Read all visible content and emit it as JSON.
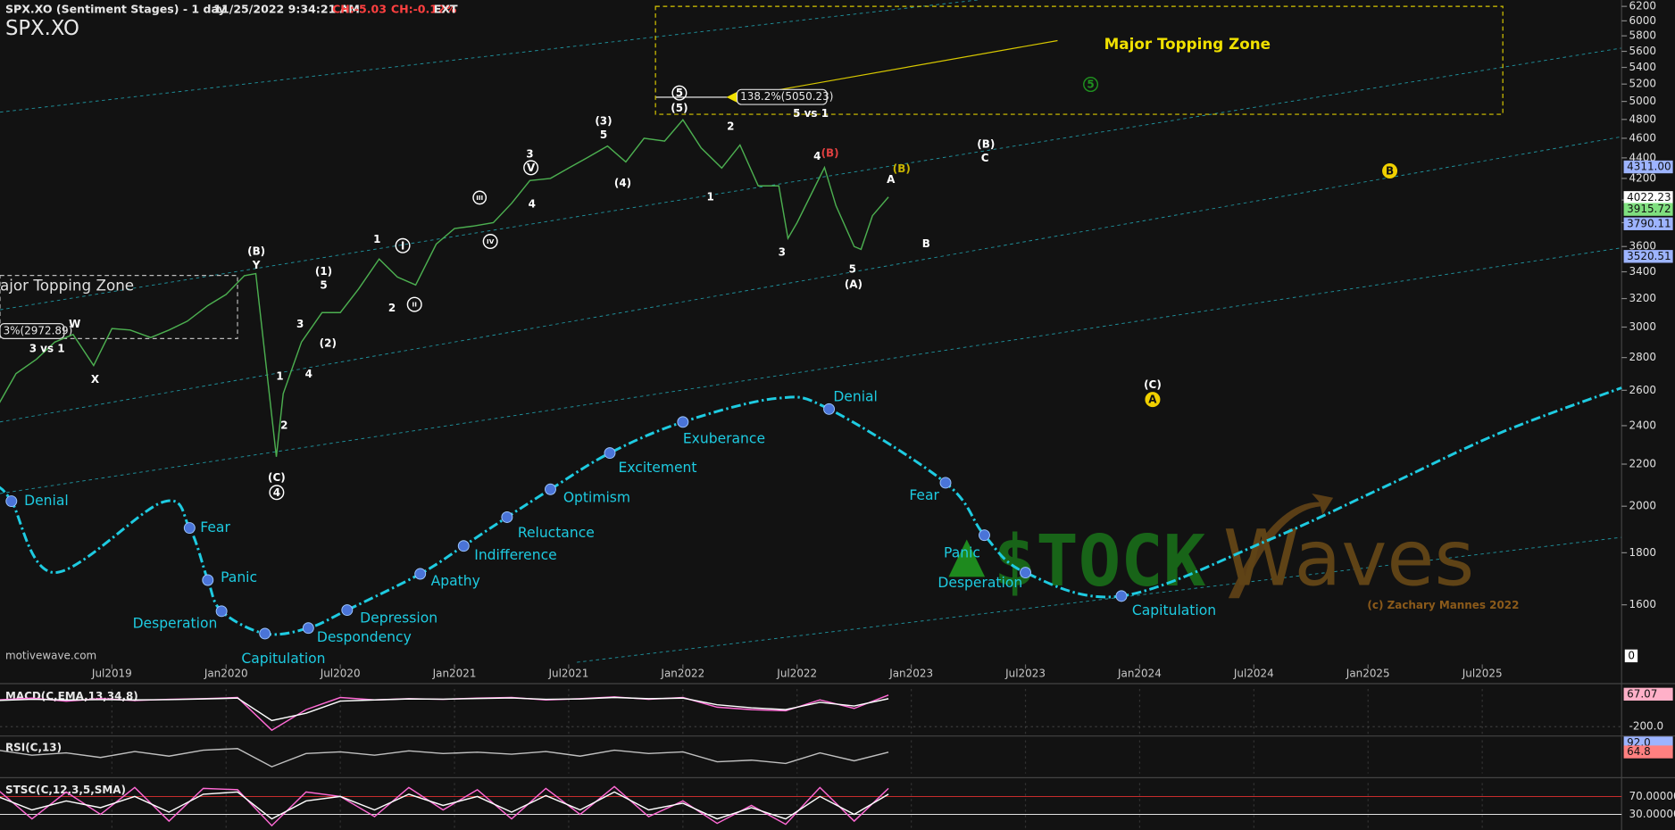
{
  "header": {
    "title": "SPX.XO (Sentiment Stages) - 1 day",
    "datetime": "11/25/2022 9:34:21 AM",
    "change": "CH:-5.03",
    "change_pct": "CH:-0.12%",
    "session": "EXT",
    "symbol": "SPX.XO",
    "source": "motivewave.com"
  },
  "watermark": {
    "brand_left": "$TOCK",
    "brand_right": "Waves",
    "copyright": "(c) Zachary Mannes 2022"
  },
  "chart_data": [
    {
      "type": "line",
      "log_scale": true,
      "xlim": [
        2019.01,
        2026.11
      ],
      "ylim": [
        1398,
        6290
      ],
      "xticks": [
        {
          "value": 2019.5,
          "label": "Jul2019"
        },
        {
          "value": 2020.0,
          "label": "Jan2020"
        },
        {
          "value": 2020.5,
          "label": "Jul2020"
        },
        {
          "value": 2021.0,
          "label": "Jan2021"
        },
        {
          "value": 2021.5,
          "label": "Jul2021"
        },
        {
          "value": 2022.0,
          "label": "Jan2022"
        },
        {
          "value": 2022.5,
          "label": "Jul2022"
        },
        {
          "value": 2023.0,
          "label": "Jan2023"
        },
        {
          "value": 2023.5,
          "label": "Jul2023"
        },
        {
          "value": 2024.0,
          "label": "Jan2024"
        },
        {
          "value": 2024.5,
          "label": "Jul2024"
        },
        {
          "value": 2025.0,
          "label": "Jan2025"
        },
        {
          "value": 2025.5,
          "label": "Jul2025"
        }
      ],
      "yticks": [
        1600,
        1800,
        2000,
        2200,
        2400,
        2600,
        2800,
        3000,
        3200,
        3400,
        3600,
        3800,
        4000,
        4200,
        4400,
        4600,
        4800,
        5000,
        5200,
        5400,
        5600,
        5800,
        6000,
        6200
      ],
      "axis_extra_label": "0",
      "series": [
        {
          "name": "SPX.XO",
          "color": "#4caf50",
          "x": [
            2019.0,
            2019.08,
            2019.17,
            2019.25,
            2019.33,
            2019.42,
            2019.5,
            2019.58,
            2019.67,
            2019.75,
            2019.83,
            2019.92,
            2020.0,
            2020.08,
            2020.13,
            2020.22,
            2020.25,
            2020.33,
            2020.42,
            2020.5,
            2020.58,
            2020.67,
            2020.75,
            2020.83,
            2020.92,
            2021.0,
            2021.08,
            2021.17,
            2021.25,
            2021.33,
            2021.42,
            2021.5,
            2021.58,
            2021.67,
            2021.75,
            2021.83,
            2021.92,
            2022.0,
            2022.08,
            2022.17,
            2022.25,
            2022.33,
            2022.42,
            2022.46,
            2022.5,
            2022.58,
            2022.62,
            2022.67,
            2022.75,
            2022.78,
            2022.83,
            2022.9
          ],
          "values": [
            2510,
            2700,
            2790,
            2900,
            2950,
            2750,
            2990,
            2980,
            2930,
            2980,
            3040,
            3150,
            3230,
            3370,
            3386,
            2237,
            2580,
            2900,
            3100,
            3100,
            3270,
            3500,
            3360,
            3300,
            3620,
            3750,
            3770,
            3800,
            3970,
            4180,
            4200,
            4300,
            4400,
            4520,
            4360,
            4600,
            4570,
            4796,
            4500,
            4300,
            4530,
            4130,
            4130,
            3667,
            3800,
            4130,
            4305,
            3950,
            3600,
            3577,
            3860,
            4027
          ]
        },
        {
          "color": "#1ecbe1",
          "smooth": true,
          "dashed": true,
          "x": [
            2019.0,
            2019.06,
            2019.25,
            2019.72,
            2019.84,
            2019.92,
            2019.98,
            2020.17,
            2020.36,
            2020.53,
            2020.85,
            2021.04,
            2021.23,
            2021.42,
            2021.68,
            2022.0,
            2022.41,
            2022.64,
            2023.15,
            2023.32,
            2023.5,
            2023.92,
            2024.57,
            2025.08,
            2025.58,
            2026.11
          ],
          "values": [
            2094,
            2023,
            1721,
            2018,
            1904,
            1692,
            1577,
            1499,
            1518,
            1581,
            1716,
            1828,
            1951,
            2078,
            2256,
            2420,
            2553,
            2492,
            2109,
            1873,
            1721,
            1632,
            1855,
            2094,
            2362,
            2615
          ],
          "labels": [
            null,
            "Denial",
            null,
            null,
            "Fear",
            "Panic",
            "Desperation",
            "Capitulation",
            "Despondency",
            "Depression",
            "Apathy",
            "Indifference",
            "Reluctance",
            "Optimism",
            "Excitement",
            "Exuberance",
            null,
            "Denial",
            "Fear",
            "Panic",
            "Desperation",
            "Capitulation",
            null,
            null,
            null,
            null
          ]
        }
      ],
      "zones": [
        {
          "label": "Major Topping Zone",
          "x": [
            2021.88,
            2025.59
          ],
          "y": [
            4856,
            6200
          ]
        },
        {
          "label": "ajor Topping Zone",
          "x": [
            2019.01,
            2020.05
          ],
          "y": [
            2923,
            3372
          ]
        }
      ],
      "fib_levels": [
        {
          "value": 5050.23,
          "label": "138.2%(5050.23)"
        },
        {
          "value": 2972.89,
          "label": "3%(2972.89)"
        }
      ],
      "price_labels": [
        {
          "value": 4311.0,
          "label": "4311.00",
          "color": "#9db4ff"
        },
        {
          "value": 4022.23,
          "label": "4022.23",
          "color": "#ffffff"
        },
        {
          "value": 3915.72,
          "label": "3915.72",
          "color": "#7fe07f"
        },
        {
          "value": 3790.11,
          "label": "3790.11",
          "color": "#9db4ff"
        },
        {
          "value": 3520.51,
          "label": "3520.51",
          "color": "#9db4ff"
        }
      ],
      "annotations": [
        {
          "text": "(B)"
        },
        {
          "text": "Y"
        },
        {
          "text": "W"
        },
        {
          "text": "X"
        },
        {
          "text": "3 vs 1"
        },
        {
          "text": "1"
        },
        {
          "text": "2"
        },
        {
          "text": "3"
        },
        {
          "text": "4"
        },
        {
          "text": "(1)"
        },
        {
          "text": "5"
        },
        {
          "text": "(2)"
        },
        {
          "text": "1"
        },
        {
          "text": "2"
        },
        {
          "text": "(C)"
        },
        {
          "text": "4",
          "circled": true
        },
        {
          "text": "I",
          "circled": true
        },
        {
          "text": "II",
          "circled": true
        },
        {
          "text": "III",
          "circled": true
        },
        {
          "text": "IV",
          "circled": true
        },
        {
          "text": "V",
          "circled": true
        },
        {
          "text": "3"
        },
        {
          "text": "4"
        },
        {
          "text": "(3)"
        },
        {
          "text": "5"
        },
        {
          "text": "(4)"
        },
        {
          "text": "5",
          "circled": true
        },
        {
          "text": "(5)"
        },
        {
          "text": "2"
        },
        {
          "text": "1"
        },
        {
          "text": "3"
        },
        {
          "text": "4"
        },
        {
          "text": "(B)",
          "color": "#e04040"
        },
        {
          "text": "(B)",
          "color": "#c8b400"
        },
        {
          "text": "A"
        },
        {
          "text": "5"
        },
        {
          "text": "(A)"
        },
        {
          "text": "B"
        },
        {
          "text": "(B)"
        },
        {
          "text": "C"
        },
        {
          "text": "5 vs 1"
        },
        {
          "text": "(C)"
        },
        {
          "text": "A",
          "circled": true,
          "filled": true,
          "color": "#f0d000"
        },
        {
          "text": "B",
          "circled": true,
          "filled": true,
          "color": "#f0d000"
        },
        {
          "text": "5",
          "circled": true,
          "color": "#1f8f1f"
        }
      ]
    },
    {
      "type": "line",
      "title": "MACD(C,EMA,13,34,8)",
      "xlim": [
        2019.01,
        2026.11
      ],
      "ylim": [
        -260,
        110
      ],
      "x": [
        2019.0,
        2019.15,
        2019.3,
        2019.45,
        2019.6,
        2019.75,
        2019.9,
        2020.05,
        2020.2,
        2020.35,
        2020.5,
        2020.65,
        2020.8,
        2020.95,
        2021.1,
        2021.25,
        2021.4,
        2021.55,
        2021.7,
        2021.85,
        2022.0,
        2022.15,
        2022.3,
        2022.45,
        2022.6,
        2022.75,
        2022.9
      ],
      "yticks": [
        {
          "value": -200,
          "label": "-200.0"
        }
      ],
      "last_values": [
        67.07
      ],
      "last_value_colors": [
        "#ffb0c8"
      ],
      "series": [
        {
          "color": "#ff6ad5",
          "values": [
            20,
            35,
            10,
            30,
            15,
            25,
            30,
            40,
            -230,
            -60,
            40,
            20,
            30,
            25,
            35,
            40,
            20,
            30,
            45,
            25,
            40,
            -40,
            -60,
            -70,
            20,
            -50,
            60
          ]
        },
        {
          "color": "#ffffff",
          "values": [
            15,
            25,
            20,
            22,
            20,
            22,
            28,
            35,
            -150,
            -90,
            10,
            20,
            28,
            26,
            32,
            36,
            25,
            28,
            40,
            30,
            35,
            -20,
            -45,
            -60,
            0,
            -30,
            30
          ]
        }
      ]
    },
    {
      "type": "line",
      "title": "RSI(C,13)",
      "xlim": [
        2019.01,
        2026.11
      ],
      "ylim": [
        0,
        100
      ],
      "x": [
        2019.0,
        2019.15,
        2019.3,
        2019.45,
        2019.6,
        2019.75,
        2019.9,
        2020.05,
        2020.2,
        2020.35,
        2020.5,
        2020.65,
        2020.8,
        2020.95,
        2021.1,
        2021.25,
        2021.4,
        2021.55,
        2021.7,
        2021.85,
        2022.0,
        2022.15,
        2022.3,
        2022.45,
        2022.6,
        2022.75,
        2022.9
      ],
      "last_values": [
        {
          "value": 92,
          "label": "92.0"
        },
        64.8
      ],
      "last_value_colors": [
        "#9db4ff",
        "#ff8080"
      ],
      "series": [
        {
          "color": "#c0c0c0",
          "values": [
            70,
            55,
            62,
            48,
            66,
            52,
            70,
            75,
            20,
            60,
            65,
            55,
            68,
            60,
            64,
            58,
            66,
            52,
            70,
            60,
            65,
            35,
            40,
            30,
            62,
            38,
            64
          ]
        }
      ]
    },
    {
      "type": "line",
      "title": "STSC(C,12,3,5,SMA)",
      "xlim": [
        2019.01,
        2026.11
      ],
      "ylim": [
        0,
        100
      ],
      "x": [
        2019.0,
        2019.15,
        2019.3,
        2019.45,
        2019.6,
        2019.75,
        2019.9,
        2020.05,
        2020.2,
        2020.35,
        2020.5,
        2020.65,
        2020.8,
        2020.95,
        2021.1,
        2021.25,
        2021.4,
        2021.55,
        2021.7,
        2021.85,
        2022.0,
        2022.15,
        2022.3,
        2022.45,
        2022.6,
        2022.75,
        2022.9
      ],
      "yticks": [
        {
          "value": 70,
          "label": "70.00000"
        },
        {
          "value": 30,
          "label": "30.00000"
        }
      ],
      "tick_colors": [
        "#e03030",
        "#ffffff"
      ],
      "series": [
        {
          "color": "#ff6ad5",
          "values": [
            85,
            20,
            80,
            30,
            90,
            15,
            88,
            85,
            5,
            80,
            70,
            25,
            90,
            40,
            85,
            20,
            88,
            30,
            92,
            25,
            60,
            10,
            50,
            8,
            90,
            15,
            88
          ]
        },
        {
          "color": "#ffffff",
          "values": [
            70,
            40,
            60,
            45,
            70,
            35,
            75,
            80,
            20,
            60,
            70,
            40,
            75,
            50,
            70,
            35,
            72,
            40,
            80,
            40,
            55,
            20,
            45,
            20,
            70,
            30,
            75
          ]
        }
      ]
    }
  ]
}
